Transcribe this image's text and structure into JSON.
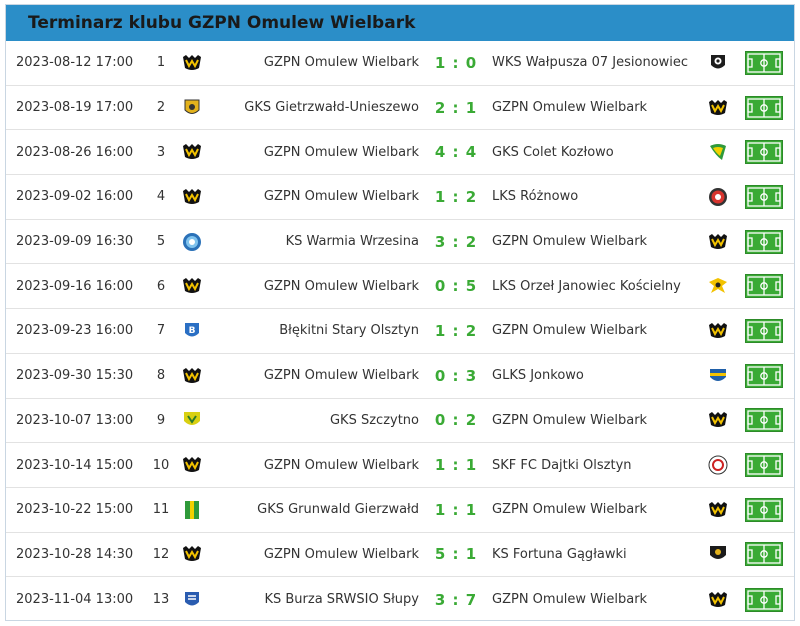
{
  "header": {
    "title": "Terminarz klubu GZPN Omulew Wielbark"
  },
  "colors": {
    "header_bg": "#2b8ec8",
    "score": "#3aaa35",
    "pitch": "#3aaa35"
  },
  "matches": [
    {
      "date": "2023-08-12 17:00",
      "round": "1",
      "home": "GZPN Omulew Wielbark",
      "score": "1 : 0",
      "away": "WKS Wałpusza 07 Jesionowiec",
      "home_logo": "omulew-crest-icon",
      "away_logo": "walpusza-crest-icon"
    },
    {
      "date": "2023-08-19 17:00",
      "round": "2",
      "home": "GKS Gietrzwałd-Unieszewo",
      "score": "2 : 1",
      "away": "GZPN Omulew Wielbark",
      "home_logo": "gietrzwald-crest-icon",
      "away_logo": "omulew-crest-icon"
    },
    {
      "date": "2023-08-26 16:00",
      "round": "3",
      "home": "GZPN Omulew Wielbark",
      "score": "4 : 4",
      "away": "GKS Colet Kozłowo",
      "home_logo": "omulew-crest-icon",
      "away_logo": "colet-crest-icon"
    },
    {
      "date": "2023-09-02 16:00",
      "round": "4",
      "home": "GZPN Omulew Wielbark",
      "score": "1 : 2",
      "away": "LKS Różnowo",
      "home_logo": "omulew-crest-icon",
      "away_logo": "roznowo-crest-icon"
    },
    {
      "date": "2023-09-09 16:30",
      "round": "5",
      "home": "KS Warmia Wrzesina",
      "score": "3 : 2",
      "away": "GZPN Omulew Wielbark",
      "home_logo": "warmia-crest-icon",
      "away_logo": "omulew-crest-icon"
    },
    {
      "date": "2023-09-16 16:00",
      "round": "6",
      "home": "GZPN Omulew Wielbark",
      "score": "0 : 5",
      "away": "LKS Orzeł Janowiec Kościelny",
      "home_logo": "omulew-crest-icon",
      "away_logo": "orzel-crest-icon"
    },
    {
      "date": "2023-09-23 16:00",
      "round": "7",
      "home": "Błękitni Stary Olsztyn",
      "score": "1 : 2",
      "away": "GZPN Omulew Wielbark",
      "home_logo": "blekitni-crest-icon",
      "away_logo": "omulew-crest-icon"
    },
    {
      "date": "2023-09-30 15:30",
      "round": "8",
      "home": "GZPN Omulew Wielbark",
      "score": "0 : 3",
      "away": "GLKS Jonkowo",
      "home_logo": "omulew-crest-icon",
      "away_logo": "jonkowo-crest-icon"
    },
    {
      "date": "2023-10-07 13:00",
      "round": "9",
      "home": "GKS Szczytno",
      "score": "0 : 2",
      "away": "GZPN Omulew Wielbark",
      "home_logo": "szczytno-crest-icon",
      "away_logo": "omulew-crest-icon"
    },
    {
      "date": "2023-10-14 15:00",
      "round": "10",
      "home": "GZPN Omulew Wielbark",
      "score": "1 : 1",
      "away": "SKF FC Dajtki Olsztyn",
      "home_logo": "omulew-crest-icon",
      "away_logo": "dajtki-crest-icon"
    },
    {
      "date": "2023-10-22 15:00",
      "round": "11",
      "home": "GKS Grunwald Gierzwałd",
      "score": "1 : 1",
      "away": "GZPN Omulew Wielbark",
      "home_logo": "grunwald-crest-icon",
      "away_logo": "omulew-crest-icon"
    },
    {
      "date": "2023-10-28 14:30",
      "round": "12",
      "home": "GZPN Omulew Wielbark",
      "score": "5 : 1",
      "away": "KS Fortuna Gągławki",
      "home_logo": "omulew-crest-icon",
      "away_logo": "fortuna-crest-icon"
    },
    {
      "date": "2023-11-04 13:00",
      "round": "13",
      "home": "KS Burza SRWSIO Słupy",
      "score": "3 : 7",
      "away": "GZPN Omulew Wielbark",
      "home_logo": "burza-crest-icon",
      "away_logo": "omulew-crest-icon"
    }
  ]
}
